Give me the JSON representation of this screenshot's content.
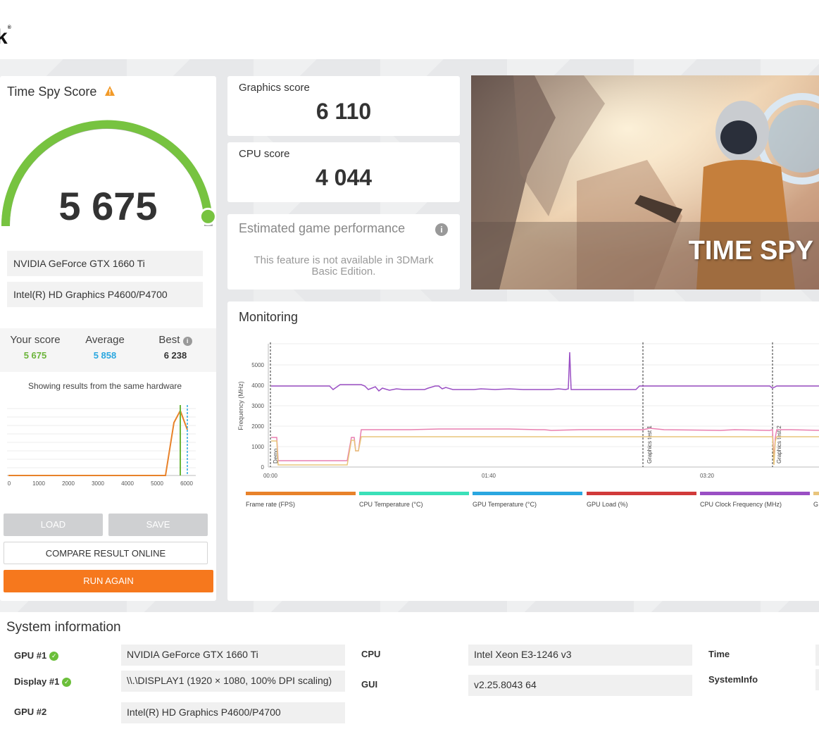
{
  "app": {
    "logo_text": "k"
  },
  "score_panel": {
    "title": "Time Spy Score",
    "score": "5 675",
    "gauge_fraction": 0.97,
    "hardware": [
      "NVIDIA GeForce GTX 1660 Ti",
      "Intel(R) HD Graphics P4600/P4700"
    ],
    "stats": {
      "your_score_label": "Your score",
      "your_score": "5 675",
      "average_label": "Average",
      "average": "5 858",
      "best_label": "Best",
      "best": "6 238"
    },
    "same_hardware_text": "Showing results from the same hardware",
    "histogram_ticks": [
      "0",
      "1000",
      "2000",
      "3000",
      "4000",
      "5000",
      "6000"
    ],
    "buttons": {
      "load": "LOAD",
      "save": "SAVE",
      "compare": "COMPARE RESULT ONLINE",
      "run_again": "RUN AGAIN"
    }
  },
  "graphics_score": {
    "label": "Graphics score",
    "value": "6 110"
  },
  "cpu_score": {
    "label": "CPU score",
    "value": "4 044"
  },
  "estimated": {
    "title": "Estimated game performance",
    "text_line1": "This feature is not available in 3DMark",
    "text_line2": "Basic Edition."
  },
  "banner": {
    "title": "TIME SPY"
  },
  "monitoring": {
    "title": "Monitoring",
    "y_axis_label": "Frequency (MHz)",
    "y_ticks": [
      "0",
      "1000",
      "2000",
      "3000",
      "4000",
      "5000"
    ],
    "x_ticks": [
      "00:00",
      "01:40",
      "03:20"
    ],
    "markers": [
      "Demo",
      "Graphics test 1",
      "Graphics test 2"
    ],
    "legend": [
      {
        "label": "Frame rate (FPS)",
        "color": "#e8822a"
      },
      {
        "label": "CPU Temperature (°C)",
        "color": "#3be0b8"
      },
      {
        "label": "GPU Temperature (°C)",
        "color": "#2aa7e0"
      },
      {
        "label": "GPU Load (%)",
        "color": "#d13a3a"
      },
      {
        "label": "CPU Clock Frequency (MHz)",
        "color": "#9a4fc4"
      },
      {
        "label": "G",
        "color": "#e9c57c"
      }
    ]
  },
  "system_info": {
    "title": "System information",
    "rows": [
      {
        "label": "GPU #1",
        "value": "NVIDIA GeForce GTX 1660 Ti"
      },
      {
        "label": "Display #1",
        "value": "\\\\.\\DISPLAY1 (1920 × 1080, 100% DPI scaling)"
      },
      {
        "label": "GPU #2",
        "value": "Intel(R) HD Graphics P4600/P4700"
      }
    ],
    "cpu_label": "CPU",
    "cpu_value": "Intel Xeon E3-1246 v3",
    "gui_label": "GUI",
    "gui_value": "v2.25.8043 64",
    "time_label": "Time",
    "sysinfo_label": "SystemInfo"
  }
}
